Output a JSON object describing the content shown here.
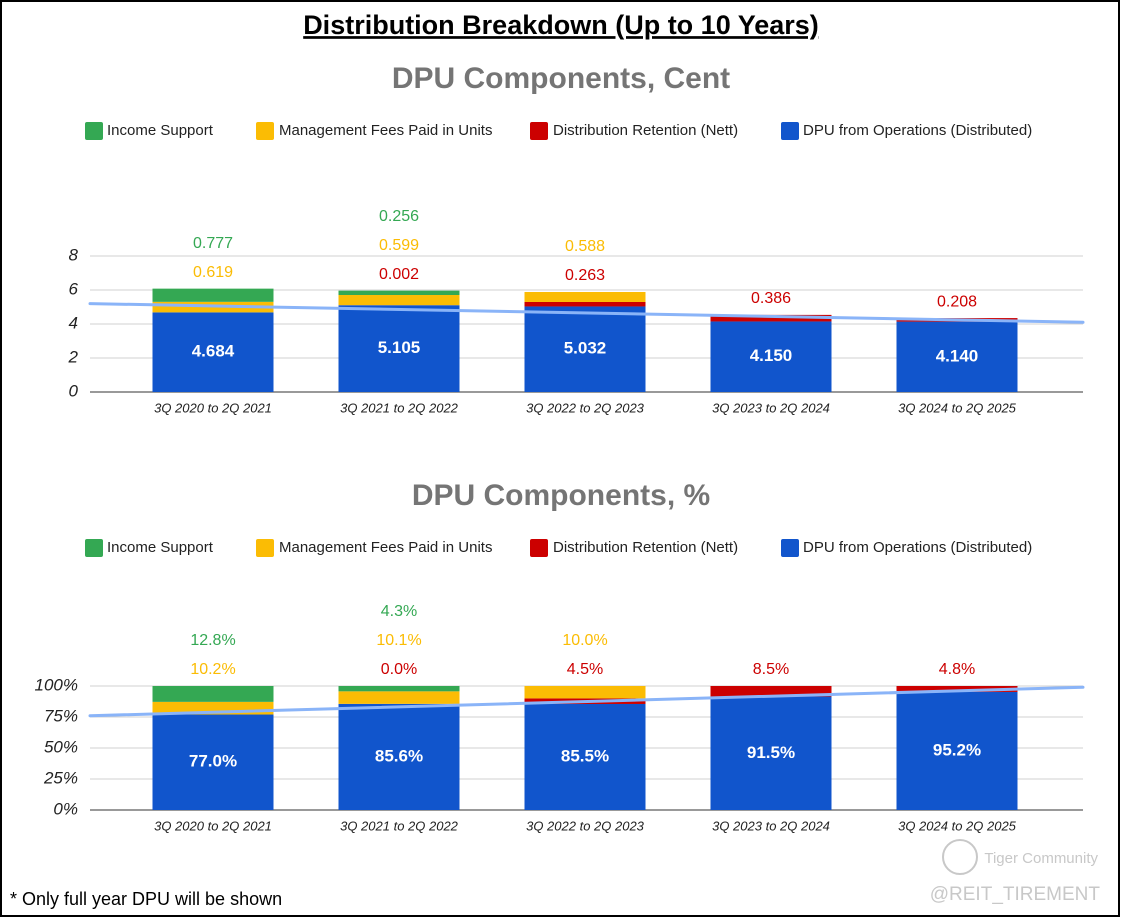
{
  "title": "Distribution Breakdown (Up to 10 Years)",
  "chart_data": [
    {
      "type": "bar",
      "stacked": true,
      "title": "DPU Components, Cent",
      "categories": [
        "3Q 2020 to 2Q 2021",
        "3Q 2021 to 2Q 2022",
        "3Q 2022 to 2Q 2023",
        "3Q 2023 to 2Q 2024",
        "3Q 2024 to 2Q 2025"
      ],
      "series": [
        {
          "name": "Income Support",
          "color": "#34a853",
          "values": [
            0.777,
            0.256,
            null,
            null,
            null
          ],
          "value_labels": [
            "0.777",
            "0.256",
            null,
            null,
            null
          ]
        },
        {
          "name": "Management Fees Paid in Units",
          "color": "#fbbc04",
          "values": [
            0.619,
            0.599,
            0.588,
            null,
            null
          ],
          "value_labels": [
            "0.619",
            "0.599",
            "0.588",
            null,
            null
          ]
        },
        {
          "name": "Distribution Retention (Nett)",
          "color": "#cc0000",
          "values": [
            null,
            0.002,
            0.263,
            0.386,
            0.208
          ],
          "value_labels": [
            null,
            "0.002",
            "0.263",
            "0.386",
            "0.208"
          ]
        },
        {
          "name": "DPU from Operations (Distributed)",
          "color": "#1155cc",
          "values": [
            4.684,
            5.105,
            5.032,
            4.15,
            4.14
          ],
          "value_labels": [
            "4.684",
            "5.105",
            "5.032",
            "4.150",
            "4.140"
          ]
        }
      ],
      "ylim": [
        0,
        8
      ],
      "yticks": [
        0,
        2,
        4,
        6,
        8
      ],
      "grid": true,
      "trendline": {
        "color": "#8ab4f8",
        "start": 5.2,
        "end": 4.1
      }
    },
    {
      "type": "bar",
      "stacked": true,
      "title": "DPU Components, %",
      "categories": [
        "3Q 2020 to 2Q 2021",
        "3Q 2021 to 2Q 2022",
        "3Q 2022 to 2Q 2023",
        "3Q 2023 to 2Q 2024",
        "3Q 2024 to 2Q 2025"
      ],
      "series": [
        {
          "name": "Income Support",
          "color": "#34a853",
          "values": [
            12.8,
            4.3,
            null,
            null,
            null
          ],
          "value_labels": [
            "12.8%",
            "4.3%",
            null,
            null,
            null
          ]
        },
        {
          "name": "Management Fees Paid in Units",
          "color": "#fbbc04",
          "values": [
            10.2,
            10.1,
            10.0,
            null,
            null
          ],
          "value_labels": [
            "10.2%",
            "10.1%",
            "10.0%",
            null,
            null
          ]
        },
        {
          "name": "Distribution Retention (Nett)",
          "color": "#cc0000",
          "values": [
            null,
            0.0,
            4.5,
            8.5,
            4.8
          ],
          "value_labels": [
            null,
            "0.0%",
            "4.5%",
            "8.5%",
            "4.8%"
          ]
        },
        {
          "name": "DPU from Operations (Distributed)",
          "color": "#1155cc",
          "values": [
            77.0,
            85.6,
            85.5,
            91.5,
            95.2
          ],
          "value_labels": [
            "77.0%",
            "85.6%",
            "85.5%",
            "91.5%",
            "95.2%"
          ]
        }
      ],
      "ylim": [
        0,
        100
      ],
      "yticks": [
        {
          "value": 0,
          "label": "0%"
        },
        {
          "value": 25,
          "label": "25%"
        },
        {
          "value": 50,
          "label": "50%"
        },
        {
          "value": 75,
          "label": "75%"
        },
        {
          "value": 100,
          "label": "100%"
        }
      ],
      "grid": true,
      "trendline": {
        "color": "#8ab4f8",
        "start": 76,
        "end": 99
      }
    }
  ],
  "footnote": "* Only full year DPU will be shown",
  "watermark": [
    "Tiger Community",
    "@REIT_TIREMENT"
  ]
}
